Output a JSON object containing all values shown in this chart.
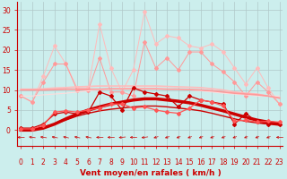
{
  "x": [
    0,
    1,
    2,
    3,
    4,
    5,
    6,
    7,
    8,
    9,
    10,
    11,
    12,
    13,
    14,
    15,
    16,
    17,
    18,
    19,
    20,
    21,
    22,
    23
  ],
  "xlabel": "Vent moyen/en rafales ( km/h )",
  "background_color": "#cceeed",
  "grid_color": "#b0c8c8",
  "ylim": [
    -4,
    32
  ],
  "yticks": [
    0,
    5,
    10,
    15,
    20,
    25,
    30
  ],
  "xlim": [
    -0.3,
    23.3
  ],
  "lines": [
    {
      "y": [
        8.5,
        7.0,
        13.5,
        21.0,
        16.5,
        10.5,
        10.5,
        26.5,
        15.5,
        9.5,
        15.0,
        29.5,
        21.5,
        23.5,
        23.0,
        21.0,
        20.5,
        21.5,
        19.5,
        15.5,
        11.5,
        15.5,
        10.5,
        6.5
      ],
      "color": "#ffbbbb",
      "marker": "D",
      "linewidth": 0.7,
      "markersize": 2.0,
      "zorder": 2
    },
    {
      "y": [
        8.5,
        7.0,
        12.0,
        16.5,
        16.5,
        10.0,
        10.0,
        18.0,
        9.5,
        9.5,
        8.5,
        22.0,
        15.5,
        18.0,
        15.0,
        19.5,
        19.5,
        16.5,
        14.5,
        12.0,
        8.5,
        12.0,
        9.5,
        6.5
      ],
      "color": "#ff9999",
      "marker": "D",
      "linewidth": 0.7,
      "markersize": 2.0,
      "zorder": 3
    },
    {
      "y": [
        10.2,
        10.2,
        10.3,
        10.5,
        10.6,
        10.8,
        10.9,
        11.0,
        11.0,
        11.0,
        11.0,
        11.0,
        11.0,
        10.9,
        10.8,
        10.7,
        10.6,
        10.3,
        10.0,
        9.5,
        9.2,
        9.0,
        8.5,
        8.0
      ],
      "color": "#ffbbbb",
      "marker": null,
      "linewidth": 1.2,
      "markersize": 0,
      "zorder": 4
    },
    {
      "y": [
        10.0,
        10.0,
        10.0,
        10.1,
        10.2,
        10.2,
        10.2,
        10.2,
        10.3,
        10.3,
        10.3,
        10.3,
        10.3,
        10.2,
        10.2,
        10.1,
        10.0,
        9.8,
        9.5,
        9.2,
        9.0,
        8.8,
        8.5,
        8.0
      ],
      "color": "#ff9999",
      "marker": null,
      "linewidth": 1.2,
      "markersize": 0,
      "zorder": 5
    },
    {
      "y": [
        8.5,
        8.5,
        8.8,
        9.0,
        9.2,
        9.5,
        9.8,
        10.0,
        10.2,
        10.5,
        10.5,
        10.5,
        10.5,
        10.3,
        10.2,
        10.0,
        9.8,
        9.5,
        9.2,
        9.0,
        8.8,
        8.5,
        8.5,
        8.5
      ],
      "color": "#ffdddd",
      "marker": null,
      "linewidth": 0.8,
      "markersize": 0,
      "zorder": 3
    },
    {
      "y": [
        0.5,
        0.5,
        1.5,
        4.0,
        4.5,
        4.0,
        4.5,
        9.5,
        8.5,
        5.0,
        10.5,
        9.5,
        9.0,
        8.5,
        5.8,
        8.5,
        7.5,
        7.0,
        6.5,
        1.5,
        4.2,
        2.0,
        1.5,
        1.5
      ],
      "color": "#cc0000",
      "marker": "D",
      "linewidth": 0.9,
      "markersize": 2.0,
      "zorder": 7
    },
    {
      "y": [
        0.3,
        0.3,
        1.2,
        4.5,
        4.8,
        4.5,
        5.0,
        5.5,
        6.5,
        6.5,
        5.5,
        5.8,
        5.0,
        4.5,
        4.2,
        5.5,
        7.5,
        7.0,
        6.0,
        2.2,
        2.5,
        2.0,
        2.2,
        2.0
      ],
      "color": "#ff5555",
      "marker": "D",
      "linewidth": 0.9,
      "markersize": 2.0,
      "zorder": 8
    },
    {
      "y": [
        0.2,
        0.2,
        0.8,
        1.5,
        2.5,
        3.5,
        4.2,
        4.8,
        5.2,
        5.5,
        5.8,
        6.0,
        6.0,
        5.8,
        5.5,
        5.2,
        4.8,
        4.2,
        3.5,
        2.8,
        2.2,
        1.8,
        1.5,
        1.2
      ],
      "color": "#cc0000",
      "marker": null,
      "linewidth": 1.0,
      "markersize": 0,
      "zorder": 6
    },
    {
      "y": [
        0.0,
        0.0,
        0.5,
        1.5,
        2.8,
        4.0,
        5.0,
        5.8,
        6.5,
        7.0,
        7.5,
        7.8,
        7.8,
        7.5,
        7.2,
        6.8,
        6.2,
        5.5,
        4.8,
        4.0,
        3.2,
        2.5,
        2.0,
        1.5
      ],
      "color": "#cc0000",
      "marker": null,
      "linewidth": 2.5,
      "markersize": 0,
      "zorder": 5
    }
  ],
  "wind_angles": [
    270,
    250,
    248,
    243,
    240,
    240,
    242,
    270,
    270,
    285,
    270,
    290,
    310,
    312,
    315,
    315,
    315,
    315,
    315,
    315,
    318,
    316,
    315,
    270
  ],
  "arrow_color": "#cc0000",
  "tick_color": "#cc0000",
  "label_fontsize": 5.5,
  "xlabel_fontsize": 6.5,
  "ytick_labels": [
    "0",
    "5",
    "10",
    "15",
    "20",
    "25",
    "30"
  ]
}
